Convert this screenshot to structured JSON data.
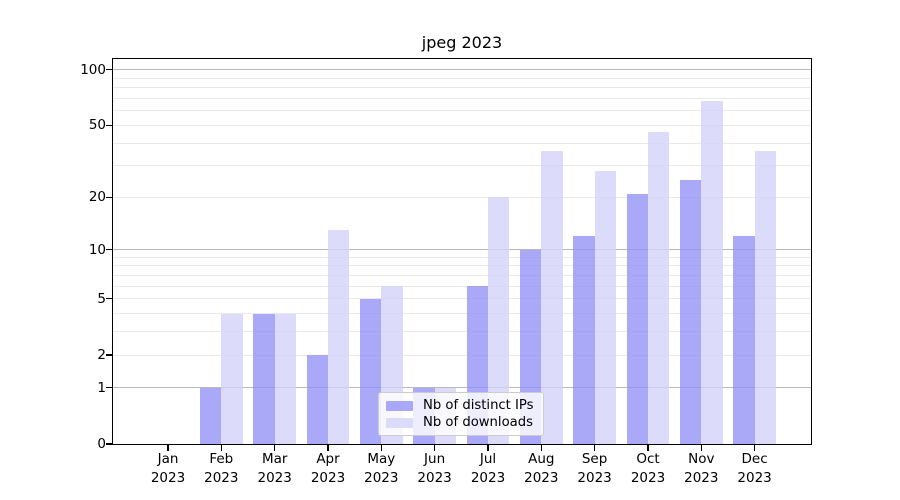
{
  "window_title": "jpeg 2023",
  "chart_data": {
    "type": "bar",
    "title": "jpeg 2023",
    "categories": [
      "Jan",
      "Feb",
      "Mar",
      "Apr",
      "May",
      "Jun",
      "Jul",
      "Aug",
      "Sep",
      "Oct",
      "Nov",
      "Dec"
    ],
    "category_year": "2023",
    "series": [
      {
        "name": "Nb of distinct IPs",
        "key": "distinct-ips",
        "values": [
          0,
          1,
          4,
          2,
          5,
          1,
          6,
          10,
          12,
          21,
          25,
          12
        ]
      },
      {
        "name": "Nb of downloads",
        "key": "downloads",
        "values": [
          0,
          4,
          4,
          13,
          6,
          1,
          20,
          36,
          28,
          46,
          68,
          36
        ]
      }
    ],
    "yscale": "log(1+x)",
    "ylim": [
      0,
      114.6
    ],
    "ytick_labels": [
      0,
      1,
      2,
      5,
      10,
      20,
      50,
      100
    ],
    "minor_ticks": [
      3,
      4,
      6,
      7,
      8,
      9,
      30,
      40,
      60,
      70,
      80,
      90
    ],
    "emphasized_gridlines": [
      1,
      10,
      100
    ],
    "grid": true,
    "legend_position": "lower center"
  },
  "colors": {
    "series": [
      "rgba(148,148,245,0.8)",
      "rgba(211,211,249,0.8)"
    ],
    "series_solid": [
      "#a9a9f7",
      "#dcdcfa"
    ],
    "grid_major": "#b9b9b9",
    "grid_minor": "#e9e9e9",
    "spine": "#000000",
    "background": "#ffffff",
    "legend_border": "#cccccc"
  }
}
